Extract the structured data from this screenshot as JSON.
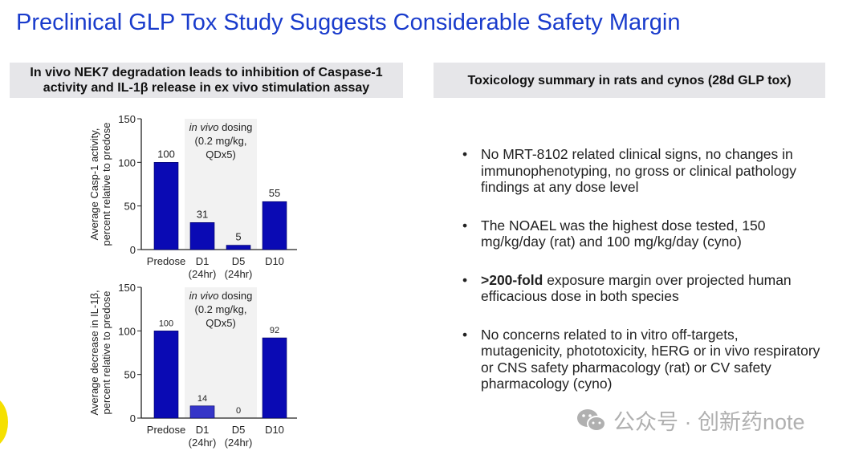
{
  "title": "Preclinical GLP Tox Study Suggests Considerable Safety Margin",
  "left_header": [
    "In vivo NEK7 degradation leads to inhibition of Caspase-1",
    "activity and IL-1β release in ex vivo stimulation assay"
  ],
  "right_header": "Toxicology summary in rats and cynos (28d GLP tox)",
  "bullets": [
    {
      "bold": "",
      "text": "No MRT-8102 related clinical signs, no changes in immunophenotyping, no gross or clinical pathology findings at any dose level"
    },
    {
      "bold": "",
      "text": "The NOAEL was the highest dose tested, 150 mg/kg/day (rat) and 100 mg/kg/day (cyno)"
    },
    {
      "bold": ">200-fold",
      "text": " exposure margin over projected human efficacious dose in both species"
    },
    {
      "bold": "",
      "text": "No concerns related to in vitro off-targets, mutagenicity, phototoxicity, hERG or in vivo respiratory or CNS safety pharmacology (rat) or CV safety pharmacology (cyno)"
    }
  ],
  "watermark": "公众号 · 创新药note",
  "chart_data": [
    {
      "type": "bar",
      "categories": [
        "Predose",
        "D1",
        "D5",
        "D10"
      ],
      "sublabels": [
        "",
        "(24hr)",
        "(24hr)",
        ""
      ],
      "values": [
        100,
        31,
        5,
        55
      ],
      "ylabel": [
        "Average Casp-1 activity,",
        "percent relative to predose"
      ],
      "ylim": [
        0,
        150
      ],
      "yticks": [
        0,
        50,
        100,
        150
      ],
      "annotation": {
        "italic": "in vivo",
        "rest": " dosing",
        "lines": [
          "(0.2 mg/kg,",
          "QDx5)"
        ]
      },
      "colors": [
        "#0a0ab4",
        "#0a0ab4",
        "#0a0ab4",
        "#0a0ab4"
      ]
    },
    {
      "type": "bar",
      "categories": [
        "Predose",
        "D1",
        "D5",
        "D10"
      ],
      "sublabels": [
        "",
        "(24hr)",
        "(24hr)",
        ""
      ],
      "values": [
        100,
        14,
        0,
        92
      ],
      "ylabel": [
        "Average decrease in IL-1β,",
        "percent relative to predose"
      ],
      "ylim": [
        0,
        150
      ],
      "yticks": [
        0,
        50,
        100,
        150
      ],
      "annotation": {
        "italic": "in vivo",
        "rest": " dosing",
        "lines": [
          "(0.2 mg/kg,",
          "QDx5)"
        ]
      },
      "colors": [
        "#0a0ab4",
        "#3535c8",
        "#0a0ab4",
        "#0a0ab4"
      ]
    }
  ]
}
